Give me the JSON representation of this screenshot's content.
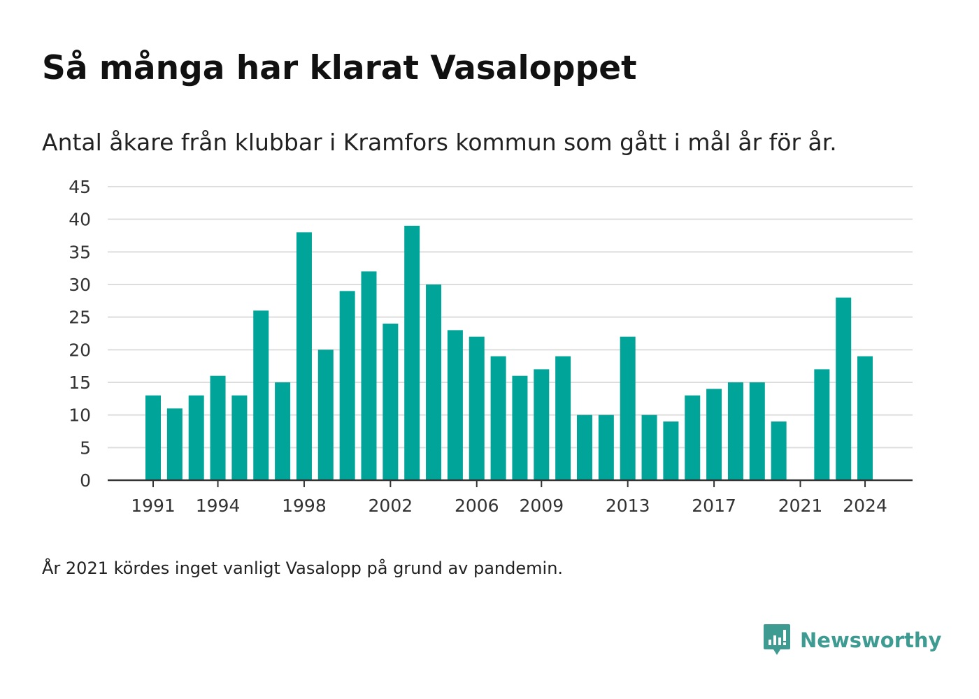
{
  "title": "Så många har klarat Vasaloppet",
  "subtitle": "Antal åkare från klubbar i Kramfors kommun som gått i mål år för år.",
  "note": "År 2021 kördes inget vanligt Vasalopp på grund av pandemin.",
  "brand": {
    "name": "Newsworthy",
    "icon": "newsworthy-logo-icon",
    "color": "#3e9b91"
  },
  "chart_data": {
    "type": "bar",
    "title": "Så många har klarat Vasaloppet",
    "subtitle": "Antal åkare från klubbar i Kramfors kommun som gått i mål år för år.",
    "xlabel": "",
    "ylabel": "",
    "color": "#00a499",
    "grid": true,
    "legend": "none",
    "ylim": [
      0,
      45
    ],
    "y_ticks": [
      0,
      5,
      10,
      15,
      20,
      25,
      30,
      35,
      40,
      45
    ],
    "x_tick_labels": [
      "1991",
      "1994",
      "1998",
      "2002",
      "2006",
      "2009",
      "2013",
      "2017",
      "2021",
      "2024"
    ],
    "categories": [
      1991,
      1992,
      1993,
      1994,
      1995,
      1996,
      1997,
      1998,
      1999,
      2000,
      2001,
      2002,
      2003,
      2004,
      2005,
      2006,
      2007,
      2008,
      2009,
      2010,
      2011,
      2012,
      2013,
      2014,
      2015,
      2016,
      2017,
      2018,
      2019,
      2020,
      2021,
      2022,
      2023,
      2024
    ],
    "values": [
      13,
      11,
      13,
      16,
      13,
      26,
      15,
      38,
      20,
      29,
      32,
      24,
      39,
      30,
      23,
      22,
      19,
      16,
      17,
      19,
      10,
      10,
      22,
      10,
      9,
      13,
      14,
      15,
      15,
      9,
      0,
      17,
      28,
      19
    ]
  }
}
